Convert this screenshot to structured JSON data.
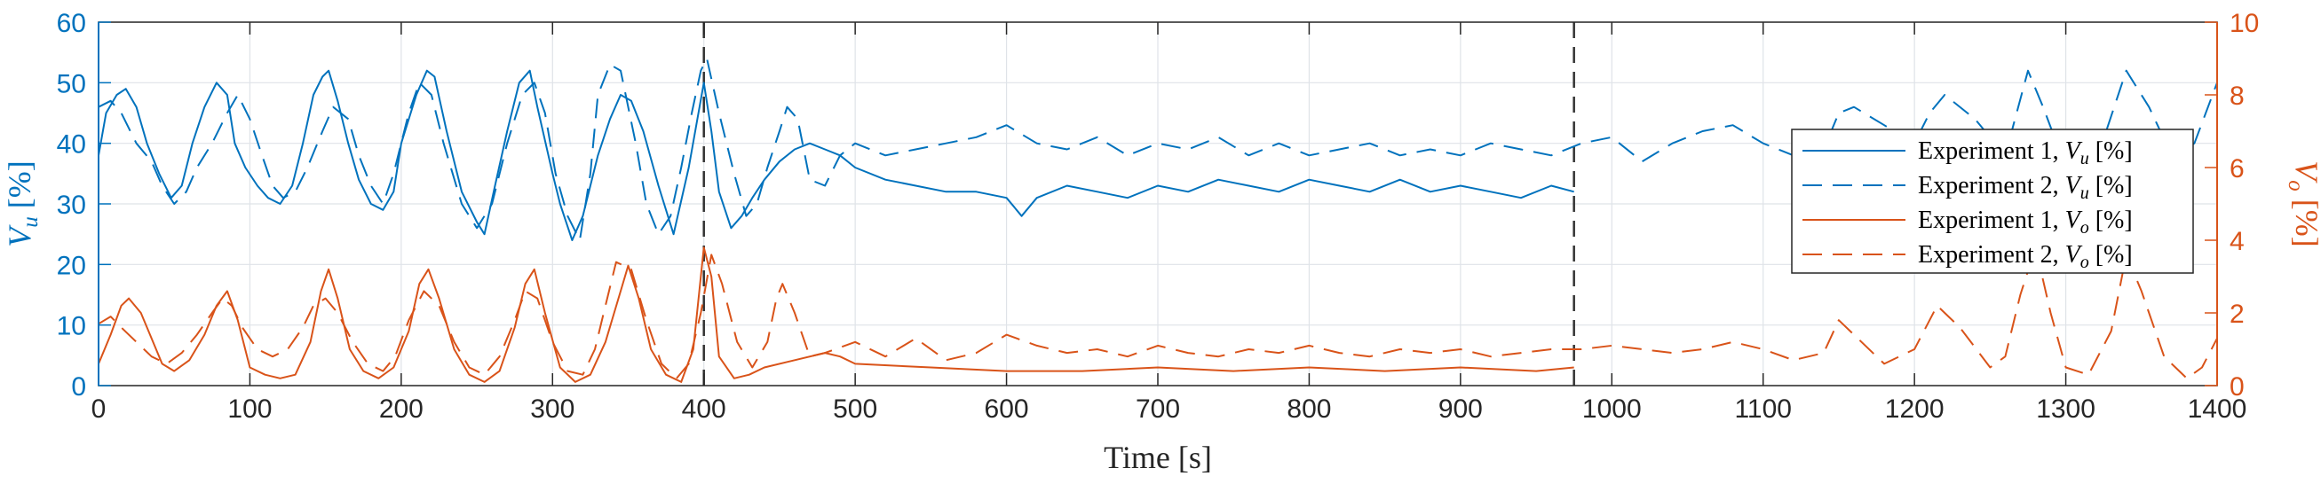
{
  "chart_data": {
    "type": "line",
    "xlabel": "Time [s]",
    "ylabel_left": {
      "main": "V",
      "sub": "u",
      "unit": " [%]"
    },
    "ylabel_right": {
      "main": "V",
      "sub": "o",
      "unit": " [%]"
    },
    "xlim": [
      0,
      1400
    ],
    "ylim_left": [
      0,
      60
    ],
    "ylim_right": [
      0,
      10
    ],
    "x_ticks": [
      "0",
      "100",
      "200",
      "300",
      "400",
      "500",
      "600",
      "700",
      "800",
      "900",
      "1000",
      "1100",
      "1200",
      "1300",
      "1400"
    ],
    "y_ticks_left": [
      "0",
      "10",
      "20",
      "30",
      "40",
      "50",
      "60"
    ],
    "y_ticks_right": [
      "0",
      "2",
      "4",
      "6",
      "8",
      "10"
    ],
    "grid": true,
    "vertical_markers": [
      400,
      975
    ],
    "legend_position": "top-right",
    "colors": {
      "left": "#0072BD",
      "right": "#D95319",
      "marker": "#333333"
    },
    "series": [
      {
        "name": "Experiment 1, V_u [%]",
        "legend": {
          "prefix": "Experiment 1, ",
          "main": "V",
          "sub": "u",
          "unit": " [%]"
        },
        "axis": "left",
        "style": "solid",
        "x": [
          0,
          5,
          12,
          18,
          25,
          32,
          40,
          48,
          55,
          62,
          70,
          78,
          85,
          90,
          97,
          105,
          112,
          120,
          128,
          135,
          142,
          148,
          152,
          158,
          165,
          172,
          180,
          188,
          195,
          200,
          210,
          217,
          222,
          230,
          240,
          250,
          255,
          262,
          270,
          278,
          285,
          290,
          300,
          305,
          313,
          320,
          330,
          338,
          345,
          352,
          360,
          370,
          380,
          390,
          400,
          405,
          410,
          418,
          425,
          432,
          440,
          450,
          460,
          470,
          480,
          490,
          500,
          520,
          540,
          560,
          580,
          600,
          610,
          620,
          640,
          660,
          680,
          700,
          720,
          740,
          760,
          780,
          800,
          820,
          840,
          860,
          880,
          900,
          920,
          940,
          960,
          975
        ],
        "y": [
          38,
          45,
          48,
          49,
          46,
          40,
          35,
          31,
          33,
          40,
          46,
          50,
          48,
          40,
          36,
          33,
          31,
          30,
          33,
          40,
          48,
          51,
          52,
          47,
          40,
          34,
          30,
          29,
          32,
          40,
          48,
          52,
          51,
          42,
          32,
          27,
          25,
          33,
          42,
          50,
          52,
          46,
          35,
          30,
          24,
          28,
          38,
          44,
          48,
          47,
          42,
          33,
          25,
          36,
          50,
          42,
          32,
          26,
          28,
          31,
          34,
          37,
          39,
          40,
          39,
          38,
          36,
          34,
          33,
          32,
          32,
          31,
          28,
          31,
          33,
          32,
          31,
          33,
          32,
          34,
          33,
          32,
          34,
          33,
          32,
          34,
          32,
          33,
          32,
          31,
          33,
          32
        ]
      },
      {
        "name": "Experiment 2, V_u [%]",
        "legend": {
          "prefix": "Experiment 2, ",
          "main": "V",
          "sub": "u",
          "unit": " [%]"
        },
        "axis": "left",
        "style": "dashed",
        "x": [
          0,
          8,
          15,
          25,
          35,
          42,
          50,
          58,
          65,
          75,
          85,
          92,
          100,
          108,
          115,
          122,
          130,
          138,
          148,
          155,
          165,
          172,
          180,
          188,
          195,
          205,
          212,
          220,
          228,
          240,
          250,
          260,
          270,
          280,
          288,
          295,
          302,
          310,
          318,
          325,
          330,
          338,
          345,
          355,
          362,
          370,
          378,
          385,
          392,
          398,
          402,
          410,
          420,
          428,
          435,
          442,
          450,
          455,
          462,
          470,
          480,
          490,
          500,
          520,
          540,
          560,
          580,
          600,
          620,
          640,
          660,
          680,
          700,
          720,
          740,
          760,
          780,
          800,
          820,
          840,
          860,
          880,
          900,
          920,
          940,
          960,
          980,
          1000,
          1020,
          1040,
          1060,
          1080,
          1100,
          1120,
          1140,
          1150,
          1160,
          1180,
          1200,
          1210,
          1220,
          1240,
          1260,
          1275,
          1285,
          1300,
          1320,
          1340,
          1355,
          1370,
          1385,
          1400
        ],
        "y": [
          46,
          47,
          45,
          40,
          37,
          33,
          30,
          32,
          36,
          40,
          45,
          48,
          44,
          38,
          33,
          31,
          32,
          36,
          42,
          46,
          44,
          38,
          33,
          30,
          35,
          45,
          50,
          48,
          40,
          30,
          26,
          30,
          40,
          48,
          50,
          45,
          35,
          28,
          24,
          35,
          48,
          53,
          52,
          40,
          30,
          25,
          28,
          36,
          45,
          52,
          54,
          45,
          35,
          28,
          30,
          36,
          42,
          46,
          44,
          34,
          33,
          38,
          40,
          38,
          39,
          40,
          41,
          43,
          40,
          39,
          41,
          38,
          40,
          39,
          41,
          38,
          40,
          38,
          39,
          40,
          38,
          39,
          38,
          40,
          39,
          38,
          40,
          41,
          37,
          40,
          42,
          43,
          40,
          38,
          39,
          45,
          46,
          43,
          40,
          45,
          48,
          44,
          38,
          52,
          46,
          36,
          37,
          52,
          46,
          38,
          40,
          50
        ]
      },
      {
        "name": "Experiment 1, V_o [%]",
        "legend": {
          "prefix": "Experiment 1, ",
          "main": "V",
          "sub": "o",
          "unit": " [%]"
        },
        "axis": "right",
        "style": "solid",
        "x": [
          0,
          8,
          15,
          20,
          28,
          35,
          42,
          50,
          60,
          70,
          78,
          85,
          92,
          100,
          110,
          120,
          130,
          140,
          147,
          152,
          158,
          166,
          175,
          185,
          195,
          205,
          212,
          218,
          225,
          235,
          245,
          255,
          265,
          275,
          282,
          288,
          295,
          305,
          315,
          325,
          335,
          345,
          350,
          357,
          365,
          375,
          385,
          393,
          400,
          405,
          410,
          420,
          430,
          440,
          460,
          480,
          490,
          500,
          550,
          600,
          650,
          700,
          750,
          800,
          850,
          900,
          950,
          975
        ],
        "y": [
          0.6,
          1.4,
          2.2,
          2.4,
          2.0,
          1.3,
          0.6,
          0.4,
          0.7,
          1.4,
          2.2,
          2.6,
          1.8,
          0.5,
          0.3,
          0.2,
          0.3,
          1.2,
          2.6,
          3.2,
          2.4,
          1.0,
          0.4,
          0.2,
          0.5,
          1.5,
          2.8,
          3.2,
          2.4,
          1.0,
          0.3,
          0.1,
          0.4,
          1.6,
          2.8,
          3.2,
          2.0,
          0.5,
          0.1,
          0.3,
          1.2,
          2.6,
          3.3,
          2.4,
          1.0,
          0.3,
          0.1,
          1.0,
          3.8,
          3.0,
          0.8,
          0.2,
          0.3,
          0.5,
          0.7,
          0.9,
          0.8,
          0.6,
          0.5,
          0.4,
          0.4,
          0.5,
          0.4,
          0.5,
          0.4,
          0.5,
          0.4,
          0.5
        ]
      },
      {
        "name": "Experiment 2, V_o [%]",
        "legend": {
          "prefix": "Experiment 2, ",
          "main": "V",
          "sub": "o",
          "unit": " [%]"
        },
        "axis": "right",
        "style": "dashed",
        "x": [
          0,
          8,
          15,
          25,
          35,
          45,
          55,
          65,
          75,
          82,
          88,
          95,
          105,
          115,
          125,
          135,
          142,
          150,
          158,
          168,
          178,
          188,
          196,
          205,
          215,
          225,
          235,
          245,
          255,
          265,
          275,
          282,
          290,
          300,
          310,
          320,
          328,
          335,
          342,
          352,
          362,
          372,
          382,
          390,
          398,
          405,
          412,
          422,
          432,
          442,
          448,
          452,
          460,
          470,
          480,
          500,
          520,
          540,
          560,
          580,
          600,
          620,
          640,
          660,
          680,
          700,
          720,
          740,
          760,
          780,
          800,
          820,
          840,
          860,
          880,
          900,
          920,
          940,
          960,
          980,
          1000,
          1020,
          1040,
          1060,
          1080,
          1100,
          1120,
          1140,
          1150,
          1160,
          1180,
          1200,
          1215,
          1230,
          1250,
          1260,
          1270,
          1280,
          1290,
          1300,
          1315,
          1330,
          1340,
          1350,
          1365,
          1380,
          1390,
          1400
        ],
        "y": [
          1.7,
          1.9,
          1.6,
          1.2,
          0.8,
          0.6,
          0.9,
          1.4,
          2.0,
          2.4,
          2.2,
          1.6,
          1.0,
          0.8,
          1.0,
          1.6,
          2.2,
          2.4,
          2.0,
          1.2,
          0.6,
          0.4,
          0.8,
          1.8,
          2.6,
          2.2,
          1.2,
          0.5,
          0.3,
          0.8,
          1.8,
          2.6,
          2.4,
          1.2,
          0.4,
          0.3,
          1.0,
          2.2,
          3.4,
          3.2,
          1.8,
          0.6,
          0.2,
          0.6,
          2.0,
          3.6,
          2.8,
          1.2,
          0.5,
          1.2,
          2.4,
          2.8,
          2.0,
          0.8,
          0.9,
          1.2,
          0.8,
          1.3,
          0.7,
          0.9,
          1.4,
          1.1,
          0.9,
          1.0,
          0.8,
          1.1,
          0.9,
          0.8,
          1.0,
          0.9,
          1.1,
          0.9,
          0.8,
          1.0,
          0.9,
          1.0,
          0.8,
          0.9,
          1.0,
          1.0,
          1.1,
          1.0,
          0.9,
          1.0,
          1.2,
          1.0,
          0.7,
          0.9,
          1.8,
          1.4,
          0.6,
          1.0,
          2.2,
          1.6,
          0.5,
          0.8,
          2.5,
          3.8,
          2.0,
          0.5,
          0.3,
          1.5,
          3.6,
          2.6,
          0.8,
          0.2,
          0.5,
          1.3
        ]
      }
    ]
  }
}
